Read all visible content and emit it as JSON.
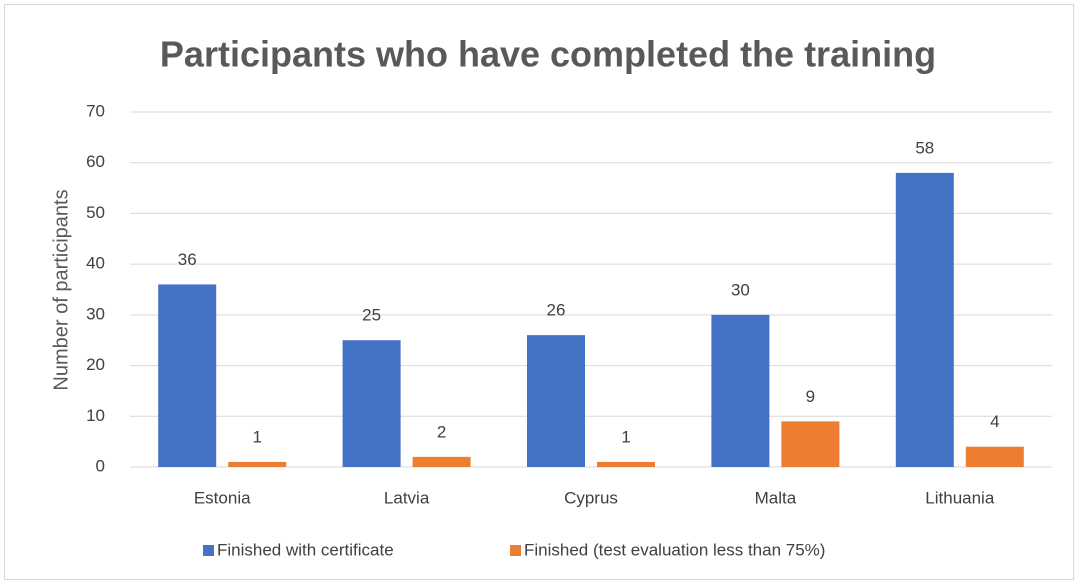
{
  "chart_data": {
    "type": "bar",
    "title": "Participants who have completed the training",
    "y_label": "Number of participants",
    "categories": [
      "Estonia",
      "Latvia",
      "Cyprus",
      "Malta",
      "Lithuania"
    ],
    "series": [
      {
        "name": "Finished with certificate",
        "color": "#4472c4",
        "values": [
          36,
          25,
          26,
          30,
          58
        ]
      },
      {
        "name": "Finished (test evaluation less than 75%)",
        "color": "#ed7d31",
        "values": [
          1,
          2,
          1,
          9,
          4
        ]
      }
    ],
    "ylim": [
      0,
      70
    ],
    "yticks": [
      0,
      10,
      20,
      30,
      40,
      50,
      60,
      70
    ],
    "grid": true,
    "legend": "bottom"
  }
}
